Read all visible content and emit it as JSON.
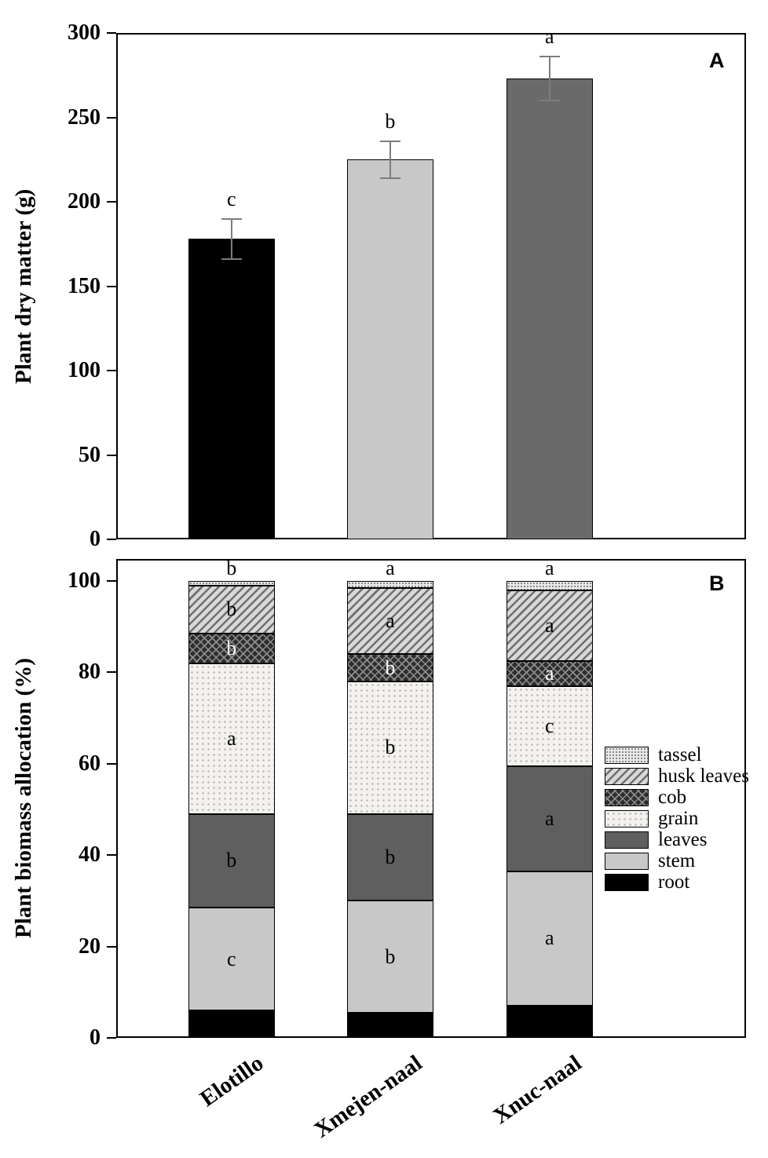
{
  "figure": {
    "panel_a_label": "A",
    "panel_b_label": "B"
  },
  "chart_data": [
    {
      "type": "bar",
      "panel": "A",
      "ylabel": "Plant dry matter (g)",
      "ylim": [
        0,
        300
      ],
      "yticks": [
        0,
        50,
        100,
        150,
        200,
        250,
        300
      ],
      "categories": [
        "Elotillo",
        "Xmejen-naal",
        "Xnuc-naal"
      ],
      "values": [
        178,
        225,
        273
      ],
      "errors": [
        12,
        11,
        13
      ],
      "sig_letters": [
        "c",
        "b",
        "a"
      ],
      "bar_colors": [
        "#000000",
        "#c8c8c8",
        "#6a6a6a"
      ]
    },
    {
      "type": "stacked-bar",
      "panel": "B",
      "ylabel": "Plant biomass allocation (%)",
      "ylim": [
        0,
        100
      ],
      "yticks": [
        0,
        20,
        40,
        60,
        80,
        100
      ],
      "categories": [
        "Elotillo",
        "Xmejen-naal",
        "Xnuc-naal"
      ],
      "series": [
        {
          "name": "root",
          "pattern": "solid-black",
          "letter_color": "#000000",
          "values": [
            6,
            5.5,
            7
          ],
          "letters": [
            "",
            "",
            ""
          ]
        },
        {
          "name": "stem",
          "pattern": "solid-lightgray",
          "letter_color": "#000000",
          "values": [
            22.5,
            24.5,
            29.5
          ],
          "letters": [
            "c",
            "b",
            "a"
          ]
        },
        {
          "name": "leaves",
          "pattern": "solid-darkgray",
          "letter_color": "#000000",
          "values": [
            20.5,
            19,
            23
          ],
          "letters": [
            "b",
            "b",
            "a"
          ]
        },
        {
          "name": "grain",
          "pattern": "stipple-light",
          "letter_color": "#000000",
          "values": [
            33,
            29,
            17.5
          ],
          "letters": [
            "a",
            "b",
            "c"
          ]
        },
        {
          "name": "cob",
          "pattern": "crosshatch-dark",
          "letter_color": "#ffffff",
          "values": [
            6.5,
            6,
            5.5
          ],
          "letters": [
            "b",
            "b",
            "a"
          ]
        },
        {
          "name": "husk leaves",
          "pattern": "diagonal-hatch",
          "letter_color": "#000000",
          "values": [
            10.5,
            14.5,
            15.5
          ],
          "letters": [
            "b",
            "a",
            "a"
          ]
        },
        {
          "name": "tassel",
          "pattern": "fine-dots",
          "letter_color": "#000000",
          "values": [
            1,
            1.5,
            2
          ],
          "letters": [
            "",
            "",
            ""
          ]
        }
      ],
      "top_letters": [
        "b",
        "a",
        "a"
      ],
      "legend": [
        "tassel",
        "husk leaves",
        "cob",
        "grain",
        "leaves",
        "stem",
        "root"
      ]
    }
  ]
}
